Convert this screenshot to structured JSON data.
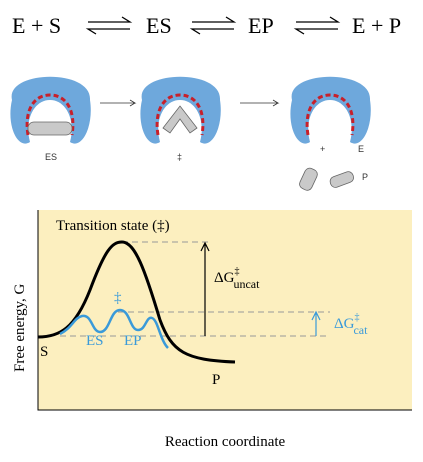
{
  "equation": {
    "terms": [
      "E + S",
      "ES",
      "EP",
      "E + P"
    ]
  },
  "illustration": {
    "labels": [
      "ES",
      "‡",
      "+",
      "E",
      "P"
    ]
  },
  "energy_diagram": {
    "title": "Transition state (‡)",
    "y_label": "Free energy, G",
    "x_label": "Reaction coordinate",
    "uncat_label": {
      "symbol": "ΔG",
      "sup": "‡",
      "sub": "uncat"
    },
    "cat_label": {
      "symbol": "ΔG",
      "sup": "‡",
      "sub": "cat"
    },
    "cat_mark": "‡",
    "intermediates": [
      "ES",
      "EP"
    ],
    "start": "S",
    "end": "P"
  }
}
